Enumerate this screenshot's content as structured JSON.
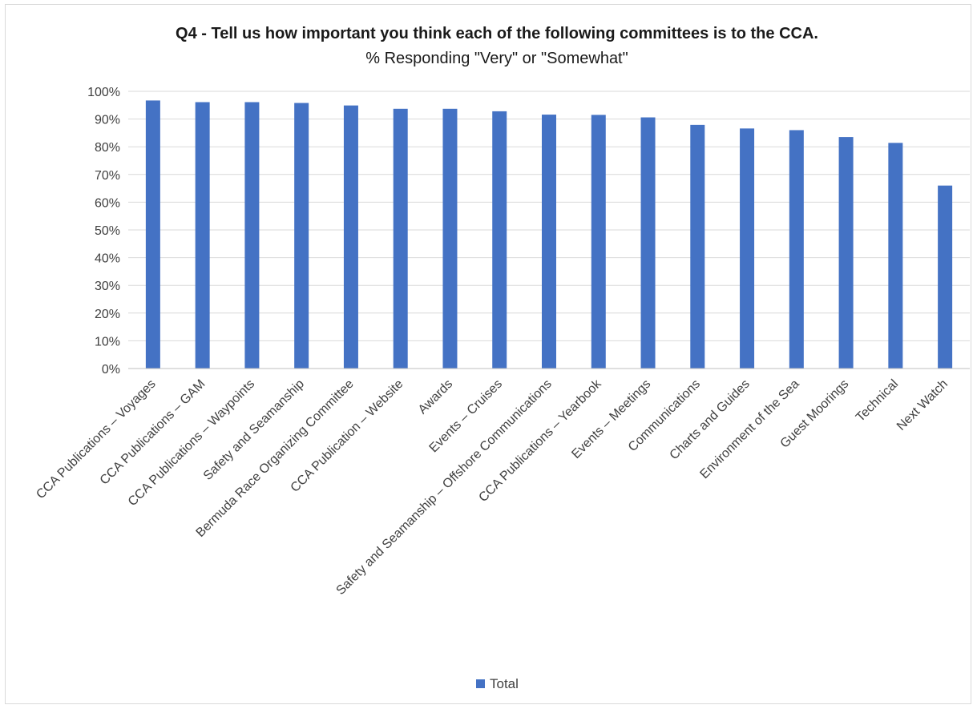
{
  "chart_data": {
    "type": "bar",
    "title": "Q4 - Tell us how important you think each of the following committees is to the CCA.",
    "subtitle": "% Responding \"Very\" or \"Somewhat\"",
    "categories": [
      "CCA Publications – Voyages",
      "CCA Publications – GAM",
      "CCA Publications – Waypoints",
      "Safety and Seamanship",
      "Bermuda Race Organizing Committee",
      "CCA Publication – Website",
      "Awards",
      "Events – Cruises",
      "Safety and Seamanship – Offshore Communications",
      "CCA Publications – Yearbook",
      "Events – Meetings",
      "Communications",
      "Charts and Guides",
      "Environment of the Sea",
      "Guest Moorings",
      "Technical",
      "Next Watch"
    ],
    "series": [
      {
        "name": "Total",
        "color": "#4472c4",
        "values": [
          96.7,
          96.1,
          96.1,
          95.8,
          94.9,
          93.7,
          93.7,
          92.8,
          91.6,
          91.5,
          90.6,
          87.9,
          86.6,
          86.0,
          83.5,
          81.4,
          66.0
        ]
      }
    ],
    "ylim": [
      0,
      100
    ],
    "yticks": [
      "0%",
      "10%",
      "20%",
      "30%",
      "40%",
      "50%",
      "60%",
      "70%",
      "80%",
      "90%",
      "100%"
    ],
    "grid": true,
    "legend_position": "bottom"
  }
}
